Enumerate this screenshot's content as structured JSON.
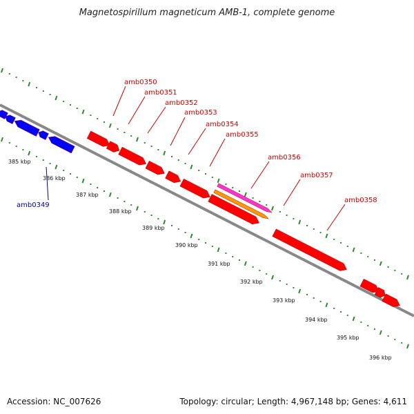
{
  "title": "Magnetospirillum magneticum AMB-1, complete genome",
  "footer": {
    "accession": "Accession: NC_007626",
    "summary": "Topology: circular; Length: 4,967,148 bp; Genes: 4,611"
  },
  "colors": {
    "forward_gene": "#ff0000",
    "reverse_gene": "#0000ff",
    "selected_gene_a": "#ff33cc",
    "selected_gene_b": "#ff9900",
    "label_forward": "#cc0000",
    "label_reverse": "#0000aa",
    "backbone": "#888888",
    "ticks": "#2a8a2a"
  },
  "kbp_marks": [
    "385 kbp",
    "386 kbp",
    "387 kbp",
    "388 kbp",
    "389 kbp",
    "390 kbp",
    "391 kbp",
    "392 kbp",
    "393 kbp",
    "394 kbp",
    "395 kbp",
    "396 kbp"
  ],
  "genes": [
    {
      "name": "amb0349",
      "strand": "reverse",
      "color": "#0000ff"
    },
    {
      "name": "amb0350",
      "strand": "forward",
      "color": "#ff0000"
    },
    {
      "name": "amb0351",
      "strand": "forward",
      "color": "#ff0000"
    },
    {
      "name": "amb0352",
      "strand": "forward",
      "color": "#ff0000"
    },
    {
      "name": "amb0353",
      "strand": "forward",
      "color": "#ff0000"
    },
    {
      "name": "amb0354",
      "strand": "forward",
      "color": "#ff0000"
    },
    {
      "name": "amb0355",
      "strand": "forward",
      "color": "#ff0000"
    },
    {
      "name": "amb0356",
      "strand": "forward",
      "color": "#ff33cc"
    },
    {
      "name": "amb0357",
      "strand": "forward",
      "color": "#ff9900"
    },
    {
      "name": "amb0358",
      "strand": "forward",
      "color": "#ff0000"
    }
  ]
}
